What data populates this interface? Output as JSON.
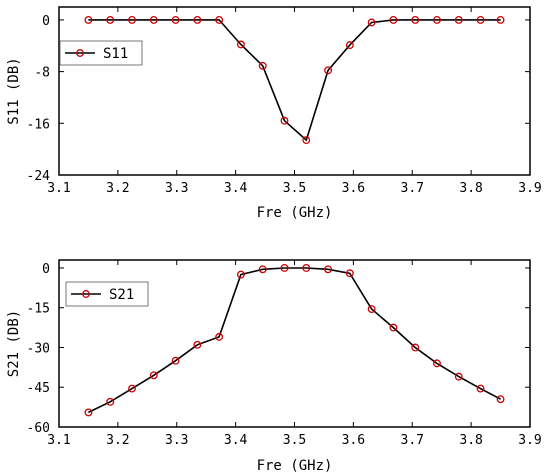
{
  "chart_data": [
    {
      "type": "line",
      "xlabel": "Fre (GHz)",
      "ylabel": "S11 (DB)",
      "xlim": [
        3.1,
        3.9
      ],
      "ylim": [
        -24,
        2
      ],
      "xticks": [
        "3.1",
        "3.2",
        "3.3",
        "3.4",
        "3.5",
        "3.6",
        "3.7",
        "3.8",
        "3.9"
      ],
      "yticks": [
        "0",
        "-8",
        "-16",
        "-24"
      ],
      "legend_position": "top-left",
      "grid": false,
      "series": [
        {
          "name": "S11",
          "color": "#000000",
          "marker_color": "#cc0000",
          "x": [
            3.15,
            3.187,
            3.224,
            3.261,
            3.298,
            3.335,
            3.372,
            3.409,
            3.446,
            3.483,
            3.52,
            3.557,
            3.594,
            3.631,
            3.668,
            3.705,
            3.742,
            3.779,
            3.816,
            3.85
          ],
          "y": [
            0,
            0,
            0,
            0,
            0,
            0,
            0,
            -3.8,
            -7.1,
            -15.6,
            -18.6,
            -7.8,
            -3.9,
            -0.4,
            0,
            0,
            0,
            0,
            0,
            0
          ]
        }
      ]
    },
    {
      "type": "line",
      "xlabel": "Fre (GHz)",
      "ylabel": "S21 (DB)",
      "xlim": [
        3.1,
        3.9
      ],
      "ylim": [
        -60,
        3
      ],
      "xticks": [
        "3.1",
        "3.2",
        "3.3",
        "3.4",
        "3.5",
        "3.6",
        "3.7",
        "3.8",
        "3.9"
      ],
      "yticks": [
        "0",
        "-15",
        "-30",
        "-45",
        "-60"
      ],
      "legend_position": "top-left",
      "grid": false,
      "series": [
        {
          "name": "S21",
          "color": "#000000",
          "marker_color": "#cc0000",
          "x": [
            3.15,
            3.187,
            3.224,
            3.261,
            3.298,
            3.335,
            3.372,
            3.409,
            3.446,
            3.483,
            3.52,
            3.557,
            3.594,
            3.631,
            3.668,
            3.705,
            3.742,
            3.779,
            3.816,
            3.85
          ],
          "y": [
            -54.5,
            -50.5,
            -45.5,
            -40.5,
            -35,
            -29,
            -26,
            -2.5,
            -0.5,
            0,
            0,
            -0.5,
            -2,
            -15.5,
            -22.5,
            -30,
            -36,
            -41,
            -45.5,
            -49.5
          ]
        }
      ]
    }
  ]
}
